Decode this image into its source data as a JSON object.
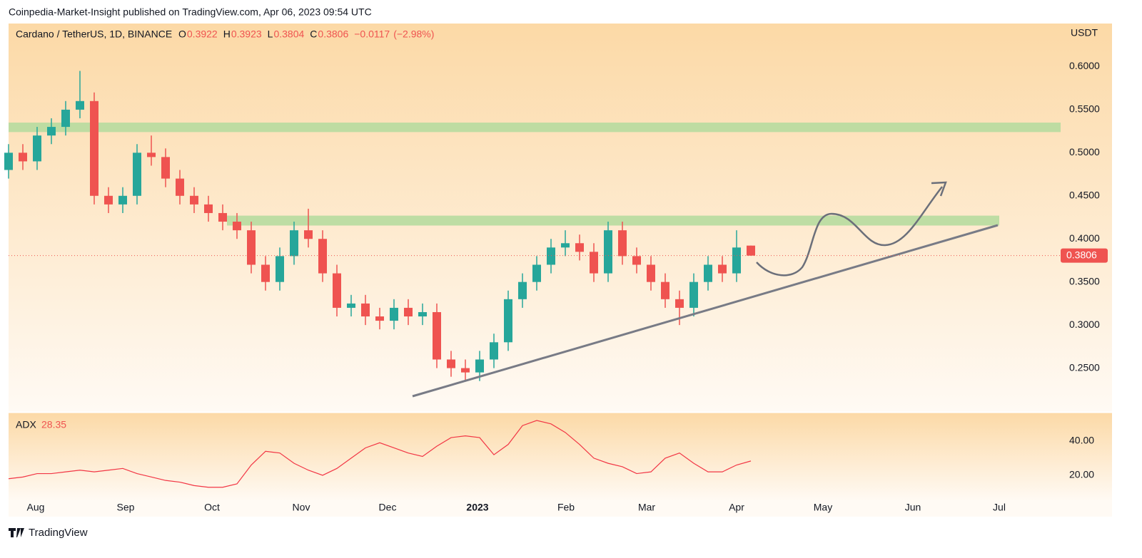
{
  "chart_data": {
    "type": "candlestick",
    "publisher": "Coinpedia-Market-Insight published on TradingView.com, Apr 06, 2023 09:54 UTC",
    "title": "Cardano / TetherUS, 1D, BINANCE",
    "ohlc_labels": [
      "O",
      "H",
      "L",
      "C"
    ],
    "change": {
      "value": -0.0117,
      "label": "−0.0117"
    },
    "change_pct": {
      "value": -2.98,
      "label": "(−2.98%)"
    },
    "y_unit": "USDT",
    "categories": [
      null,
      null,
      null,
      null,
      null,
      null,
      null,
      null,
      null,
      null,
      null,
      null,
      null,
      null,
      null,
      null,
      null,
      null,
      null,
      null,
      null,
      null,
      null,
      null,
      null,
      null,
      null,
      null,
      null,
      null,
      null,
      null,
      null,
      null,
      null,
      null,
      null,
      null,
      null,
      null,
      null,
      null,
      null,
      null,
      null,
      null,
      null,
      null,
      null,
      null,
      null,
      null,
      null
    ],
    "open": [
      0.48,
      0.5,
      0.49,
      0.52,
      0.53,
      0.55,
      0.56,
      0.45,
      0.44,
      0.45,
      0.5,
      0.495,
      0.47,
      0.45,
      0.44,
      0.43,
      0.42,
      0.41,
      0.37,
      0.35,
      0.38,
      0.41,
      0.4,
      0.36,
      0.32,
      0.325,
      0.31,
      0.305,
      0.32,
      0.31,
      0.315,
      0.26,
      0.25,
      0.245,
      0.26,
      0.28,
      0.33,
      0.35,
      0.37,
      0.39,
      0.395,
      0.385,
      0.36,
      0.41,
      0.38,
      0.37,
      0.35,
      0.33,
      0.32,
      0.35,
      0.37,
      0.36,
      0.3922
    ],
    "high": [
      0.51,
      0.51,
      0.53,
      0.54,
      0.56,
      0.595,
      0.57,
      0.46,
      0.46,
      0.51,
      0.52,
      0.505,
      0.48,
      0.46,
      0.45,
      0.44,
      0.43,
      0.42,
      0.38,
      0.39,
      0.42,
      0.435,
      0.41,
      0.37,
      0.335,
      0.335,
      0.32,
      0.33,
      0.33,
      0.325,
      0.325,
      0.27,
      0.26,
      0.27,
      0.29,
      0.34,
      0.36,
      0.38,
      0.4,
      0.41,
      0.405,
      0.395,
      0.42,
      0.42,
      0.39,
      0.38,
      0.36,
      0.34,
      0.36,
      0.38,
      0.38,
      0.41,
      0.3923
    ],
    "low": [
      0.47,
      0.48,
      0.48,
      0.51,
      0.52,
      0.54,
      0.44,
      0.43,
      0.43,
      0.44,
      0.485,
      0.46,
      0.44,
      0.43,
      0.42,
      0.41,
      0.4,
      0.36,
      0.34,
      0.34,
      0.37,
      0.39,
      0.35,
      0.31,
      0.31,
      0.3,
      0.295,
      0.295,
      0.3,
      0.3,
      0.25,
      0.24,
      0.235,
      0.235,
      0.25,
      0.27,
      0.32,
      0.34,
      0.36,
      0.38,
      0.375,
      0.35,
      0.35,
      0.37,
      0.36,
      0.34,
      0.32,
      0.3,
      0.31,
      0.34,
      0.35,
      0.35,
      0.3804
    ],
    "close": [
      0.5,
      0.49,
      0.52,
      0.53,
      0.55,
      0.56,
      0.45,
      0.44,
      0.45,
      0.5,
      0.495,
      0.47,
      0.45,
      0.44,
      0.43,
      0.42,
      0.41,
      0.37,
      0.35,
      0.38,
      0.41,
      0.4,
      0.36,
      0.32,
      0.325,
      0.31,
      0.305,
      0.32,
      0.31,
      0.315,
      0.26,
      0.25,
      0.245,
      0.26,
      0.28,
      0.33,
      0.35,
      0.37,
      0.39,
      0.395,
      0.385,
      0.36,
      0.41,
      0.38,
      0.37,
      0.35,
      0.33,
      0.32,
      0.35,
      0.37,
      0.36,
      0.39,
      0.3806
    ],
    "up_color": "#26a69a",
    "down_color": "#ef5350",
    "ylim": [
      0.2,
      0.65
    ],
    "yticks": [
      {
        "value": 0.25,
        "label": "0.2500"
      },
      {
        "value": 0.3,
        "label": "0.3000"
      },
      {
        "value": 0.35,
        "label": "0.3500"
      },
      {
        "value": 0.4,
        "label": "0.4000"
      },
      {
        "value": 0.45,
        "label": "0.4500"
      },
      {
        "value": 0.5,
        "label": "0.5000"
      },
      {
        "value": 0.55,
        "label": "0.5500"
      },
      {
        "value": 0.6,
        "label": "0.6000"
      }
    ],
    "zones": [
      [
        0.524,
        0.535
      ],
      [
        0.4155,
        0.427
      ]
    ],
    "zone_color": "#b7dca0",
    "xtick_labels": [
      "Aug",
      "Sep",
      "Oct",
      "Nov",
      "Dec",
      "2023",
      "Feb",
      "Mar",
      "Apr",
      "May",
      "Jun",
      "Jul"
    ],
    "adx": {
      "name": "ADX",
      "color": "#f23645",
      "values": [
        18,
        19,
        21,
        21,
        22,
        23,
        22,
        23,
        24,
        21,
        19,
        17,
        16,
        14,
        13,
        13,
        15,
        26,
        34,
        33,
        27,
        23,
        20,
        24,
        30,
        36,
        39,
        36,
        33,
        31,
        37,
        42,
        43,
        42,
        32,
        38,
        49,
        52,
        50,
        45,
        38,
        30,
        27,
        25,
        21,
        22,
        30,
        33,
        27,
        22,
        22,
        26,
        28.35
      ],
      "ylim": [
        5,
        57
      ],
      "yticks": [
        {
          "value": 20,
          "label": "20.00"
        },
        {
          "value": 40,
          "label": "40.00"
        }
      ]
    },
    "footer": "TradingView"
  }
}
